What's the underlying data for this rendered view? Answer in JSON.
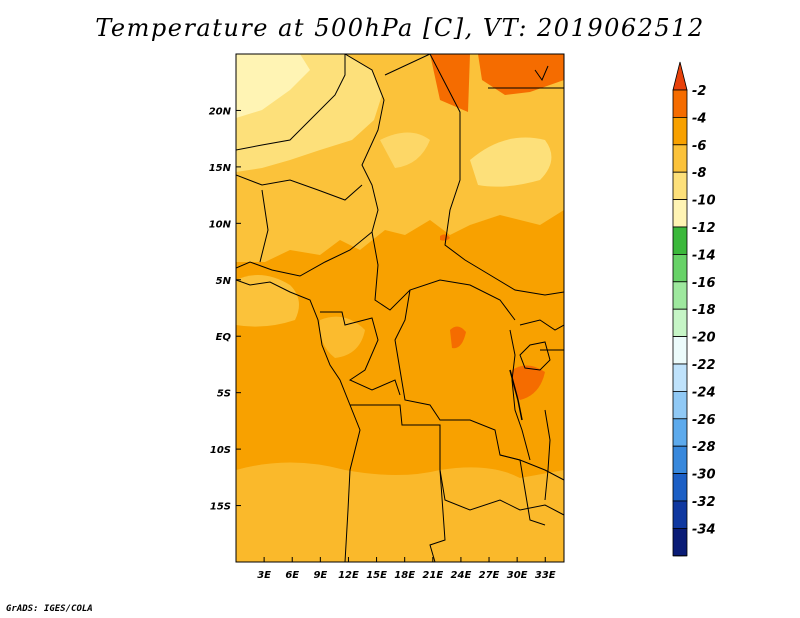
{
  "title": "Temperature at 500hPa [C], VT: 2019062512",
  "credit": "GrADS: IGES/COLA",
  "chart_data": {
    "type": "heatmap",
    "variable": "temperature",
    "level": "500hPa",
    "units": "C",
    "valid_time": "2019062512",
    "lon_range": [
      0,
      35
    ],
    "lat_range": [
      -20,
      25
    ],
    "x_ticks": [
      "3E",
      "6E",
      "9E",
      "12E",
      "15E",
      "18E",
      "21E",
      "24E",
      "27E",
      "30E",
      "33E"
    ],
    "x_tick_values": [
      3,
      6,
      9,
      12,
      15,
      18,
      21,
      24,
      27,
      30,
      33
    ],
    "y_ticks": [
      "20N",
      "15N",
      "10N",
      "5N",
      "EQ",
      "5S",
      "10S",
      "15S"
    ],
    "y_tick_values": [
      20,
      15,
      10,
      5,
      0,
      -5,
      -10,
      -15
    ],
    "colorbar": {
      "labels": [
        "-2",
        "-4",
        "-6",
        "-8",
        "-10",
        "-12",
        "-14",
        "-16",
        "-18",
        "-20",
        "-22",
        "-24",
        "-26",
        "-28",
        "-30",
        "-32",
        "-34"
      ],
      "colors": [
        "#e8410a",
        "#f56c00",
        "#f8a100",
        "#fbc23a",
        "#fde07a",
        "#fff4b4",
        "#3bb83b",
        "#67d267",
        "#9ee89e",
        "#c6f5c6",
        "#ecfbfb",
        "#bfe2fb",
        "#90c9f5",
        "#5daaec",
        "#3888dc",
        "#1c5fc5",
        "#0f38a0",
        "#0a1c76",
        "#dedef8"
      ]
    }
  }
}
